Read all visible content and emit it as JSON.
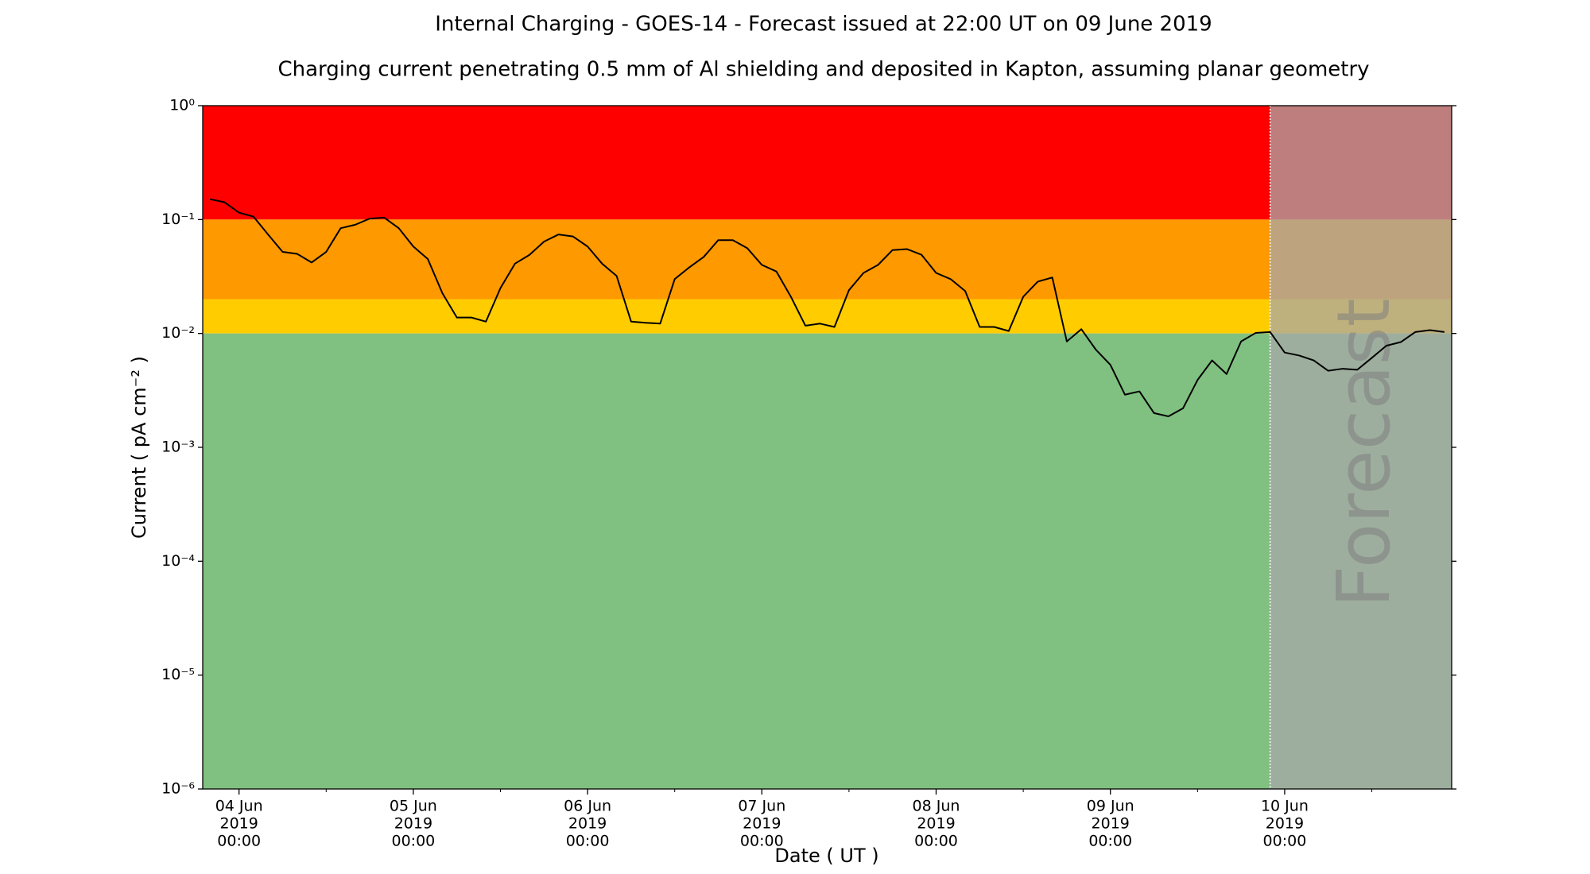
{
  "chart_data": {
    "type": "line",
    "title": "Internal Charging - GOES-14 - Forecast issued at 22:00 UT on 09 June 2019",
    "subtitle": "Charging current penetrating 0.5 mm of Al shielding and deposited in Kapton, assuming planar geometry",
    "x_label": "Date ( UT )",
    "y_label": "Current ( pA cm⁻² )",
    "annotation": "Forecast",
    "log_y": true,
    "color": "#000000",
    "bands": [
      {
        "from": 0.1,
        "to": 1,
        "color": "#ff0000"
      },
      {
        "from": 0.02,
        "to": 0.1,
        "color": "#ff9900"
      },
      {
        "from": 0.01,
        "to": 0.02,
        "color": "#ffcc00"
      },
      {
        "from": 1e-06,
        "to": 0.01,
        "color": "#80c080"
      }
    ],
    "forecast_start": "2019-06-09 22:00",
    "forecast_color": "#a8a8a8",
    "xlim": [
      "2019-06-03 19:00",
      "2019-06-10 23:00"
    ],
    "xticks": [
      {
        "value": "2019-06-04 00:00",
        "label": [
          "04 Jun",
          "2019",
          "00:00"
        ]
      },
      {
        "value": "2019-06-05 00:00",
        "label": [
          "05 Jun",
          "2019",
          "00:00"
        ]
      },
      {
        "value": "2019-06-06 00:00",
        "label": [
          "06 Jun",
          "2019",
          "00:00"
        ]
      },
      {
        "value": "2019-06-07 00:00",
        "label": [
          "07 Jun",
          "2019",
          "00:00"
        ]
      },
      {
        "value": "2019-06-08 00:00",
        "label": [
          "08 Jun",
          "2019",
          "00:00"
        ]
      },
      {
        "value": "2019-06-09 00:00",
        "label": [
          "09 Jun",
          "2019",
          "00:00"
        ]
      },
      {
        "value": "2019-06-10 00:00",
        "label": [
          "10 Jun",
          "2019",
          "00:00"
        ]
      }
    ],
    "xminorticks": [
      "2019-06-04 12:00",
      "2019-06-05 12:00",
      "2019-06-06 12:00",
      "2019-06-07 12:00",
      "2019-06-08 12:00",
      "2019-06-09 12:00",
      "2019-06-10 12:00"
    ],
    "ylim": [
      1e-06,
      1
    ],
    "yticks": [
      {
        "value": 1e-06,
        "label": "10⁻⁶"
      },
      {
        "value": 1e-05,
        "label": "10⁻⁵"
      },
      {
        "value": 0.0001,
        "label": "10⁻⁴"
      },
      {
        "value": 0.001,
        "label": "10⁻³"
      },
      {
        "value": 0.01,
        "label": "10⁻²"
      },
      {
        "value": 0.1,
        "label": "10⁻¹"
      },
      {
        "value": 1,
        "label": "10⁰"
      }
    ],
    "x": [
      "2019-06-03 20:00",
      "2019-06-03 22:00",
      "2019-06-04 00:00",
      "2019-06-04 02:00",
      "2019-06-04 04:00",
      "2019-06-04 06:00",
      "2019-06-04 08:00",
      "2019-06-04 10:00",
      "2019-06-04 12:00",
      "2019-06-04 14:00",
      "2019-06-04 16:00",
      "2019-06-04 18:00",
      "2019-06-04 20:00",
      "2019-06-04 22:00",
      "2019-06-05 00:00",
      "2019-06-05 02:00",
      "2019-06-05 04:00",
      "2019-06-05 06:00",
      "2019-06-05 08:00",
      "2019-06-05 10:00",
      "2019-06-05 12:00",
      "2019-06-05 14:00",
      "2019-06-05 16:00",
      "2019-06-05 18:00",
      "2019-06-05 20:00",
      "2019-06-05 22:00",
      "2019-06-06 00:00",
      "2019-06-06 02:00",
      "2019-06-06 04:00",
      "2019-06-06 06:00",
      "2019-06-06 08:00",
      "2019-06-06 10:00",
      "2019-06-06 12:00",
      "2019-06-06 14:00",
      "2019-06-06 16:00",
      "2019-06-06 18:00",
      "2019-06-06 20:00",
      "2019-06-06 22:00",
      "2019-06-07 00:00",
      "2019-06-07 02:00",
      "2019-06-07 04:00",
      "2019-06-07 06:00",
      "2019-06-07 08:00",
      "2019-06-07 10:00",
      "2019-06-07 12:00",
      "2019-06-07 14:00",
      "2019-06-07 16:00",
      "2019-06-07 18:00",
      "2019-06-07 20:00",
      "2019-06-07 22:00",
      "2019-06-08 00:00",
      "2019-06-08 02:00",
      "2019-06-08 04:00",
      "2019-06-08 06:00",
      "2019-06-08 08:00",
      "2019-06-08 10:00",
      "2019-06-08 12:00",
      "2019-06-08 14:00",
      "2019-06-08 16:00",
      "2019-06-08 18:00",
      "2019-06-08 20:00",
      "2019-06-08 22:00",
      "2019-06-09 00:00",
      "2019-06-09 02:00",
      "2019-06-09 04:00",
      "2019-06-09 06:00",
      "2019-06-09 08:00",
      "2019-06-09 10:00",
      "2019-06-09 12:00",
      "2019-06-09 14:00",
      "2019-06-09 16:00",
      "2019-06-09 18:00",
      "2019-06-09 20:00",
      "2019-06-09 22:00",
      "2019-06-10 00:00",
      "2019-06-10 02:00",
      "2019-06-10 04:00",
      "2019-06-10 06:00",
      "2019-06-10 08:00",
      "2019-06-10 10:00",
      "2019-06-10 12:00",
      "2019-06-10 14:00",
      "2019-06-10 16:00",
      "2019-06-10 18:00",
      "2019-06-10 20:00",
      "2019-06-10 22:00"
    ],
    "values": [
      0.151,
      0.142,
      0.115,
      0.106,
      0.074,
      0.052,
      0.05,
      0.042,
      0.052,
      0.084,
      0.09,
      0.102,
      0.104,
      0.084,
      0.058,
      0.045,
      0.0226,
      0.0138,
      0.0138,
      0.0127,
      0.025,
      0.041,
      0.049,
      0.064,
      0.074,
      0.071,
      0.058,
      0.041,
      0.032,
      0.0127,
      0.0124,
      0.0122,
      0.03,
      0.038,
      0.047,
      0.066,
      0.066,
      0.056,
      0.04,
      0.035,
      0.021,
      0.0117,
      0.0122,
      0.0114,
      0.024,
      0.034,
      0.04,
      0.054,
      0.055,
      0.049,
      0.034,
      0.03,
      0.0236,
      0.0114,
      0.0114,
      0.0105,
      0.021,
      0.0285,
      0.031,
      0.0085,
      0.0109,
      0.0072,
      0.0053,
      0.0029,
      0.0031,
      0.002,
      0.00187,
      0.0022,
      0.0039,
      0.0058,
      0.0044,
      0.0085,
      0.0101,
      0.0103,
      0.0068,
      0.0064,
      0.0058,
      0.0047,
      0.0049,
      0.0048,
      0.0061,
      0.0078,
      0.0084,
      0.0103,
      0.0107,
      0.0103
    ]
  }
}
